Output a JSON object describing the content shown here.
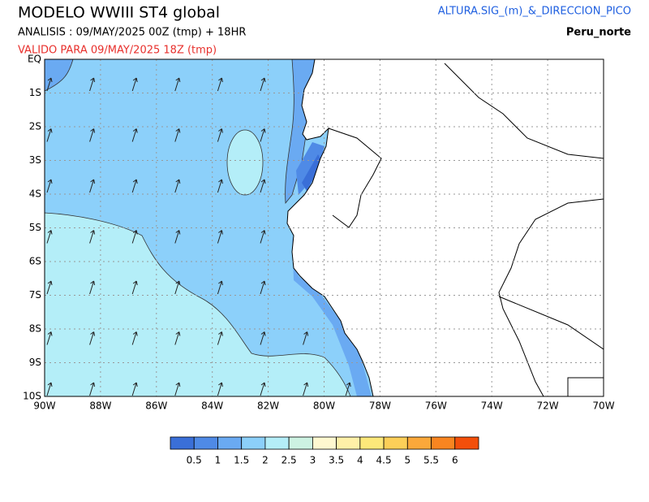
{
  "header": {
    "title": "MODELO WWIII ST4 global",
    "analysis": "ANALISIS : 09/MAY/2025 00Z  (tmp) + 18HR",
    "valid": "VALIDO PARA  09/MAY/2025 18Z  (tmp)",
    "variable": "ALTURA.SIG_(m)_&_DIRECCION_PICO",
    "region": "Peru_norte"
  },
  "map": {
    "lat_labels": [
      "EQ",
      "1S",
      "2S",
      "3S",
      "4S",
      "5S",
      "6S",
      "7S",
      "8S",
      "9S",
      "10S"
    ],
    "lon_labels": [
      "90W",
      "88W",
      "86W",
      "84W",
      "82W",
      "80W",
      "78W",
      "76W",
      "74W",
      "72W",
      "70W"
    ]
  },
  "legend": {
    "colors": [
      "#3a6fd8",
      "#4f8ae6",
      "#6aaaf2",
      "#8cd0fa",
      "#b4eef8",
      "#cdf2e2",
      "#fff8d0",
      "#fff0a8",
      "#fde87a",
      "#fdcf58",
      "#fba83a",
      "#f98520",
      "#f34f0a"
    ],
    "labels": [
      "0.5",
      "1",
      "1.5",
      "2",
      "2.5",
      "3",
      "3.5",
      "4",
      "4.5",
      "5",
      "5.5",
      "6"
    ]
  }
}
